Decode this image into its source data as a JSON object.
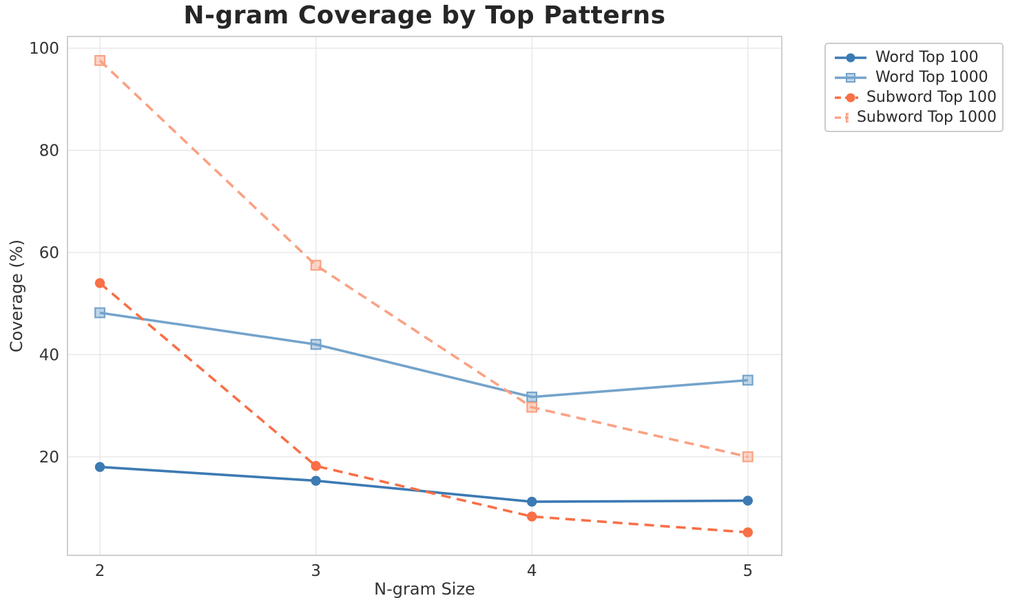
{
  "chart_data": {
    "type": "line",
    "title": "N-gram Coverage by Top Patterns",
    "xlabel": "N-gram Size",
    "ylabel": "Coverage (%)",
    "x": [
      2,
      3,
      4,
      5
    ],
    "xtick_labels": [
      "2",
      "3",
      "4",
      "5"
    ],
    "ytick_values": [
      20,
      40,
      60,
      80,
      100
    ],
    "ytick_labels": [
      "20",
      "40",
      "60",
      "80",
      "100"
    ],
    "xlim": [
      1.85,
      5.157
    ],
    "ylim": [
      0.7,
      102.3
    ],
    "grid": true,
    "legend_position": "outside-upper-right",
    "series": [
      {
        "name": "Word Top 100",
        "color": "#3C7AB3",
        "line_style": "solid",
        "marker": "circle",
        "values": [
          18.0,
          15.3,
          11.2,
          11.4
        ]
      },
      {
        "name": "Word Top 1000",
        "color": "#74A3CB",
        "line_style": "solid",
        "marker": "square",
        "values": [
          48.2,
          42.0,
          31.7,
          35.0
        ]
      },
      {
        "name": "Subword Top 100",
        "color": "#F96F46",
        "line_style": "dashed",
        "marker": "circle",
        "values": [
          54.0,
          18.2,
          8.3,
          5.2
        ]
      },
      {
        "name": "Subword Top 1000",
        "color": "#FAA183",
        "line_style": "dashed",
        "marker": "square",
        "values": [
          97.6,
          57.5,
          29.7,
          20.0
        ]
      }
    ],
    "colors": {
      "grid": "#e7e7e7",
      "spine": "#cfcfcf",
      "tick_label": "#333333"
    }
  }
}
